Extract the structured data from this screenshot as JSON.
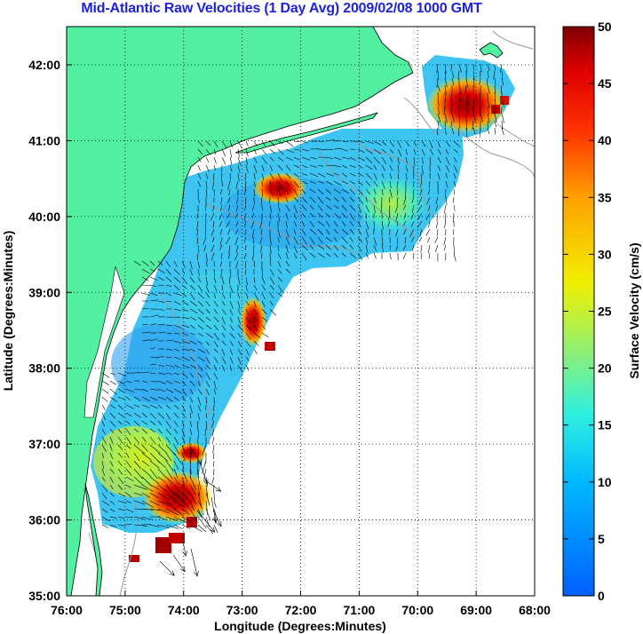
{
  "title": "Mid-Atlantic Raw Velocities (1 Day Avg) 2009/02/08 1000 GMT",
  "x_axis": {
    "label": "Longitude (Degrees:Minutes)",
    "ticks": [
      "76:00",
      "75:00",
      "74:00",
      "73:00",
      "72:00",
      "71:00",
      "70:00",
      "69:00",
      "68:00"
    ]
  },
  "y_axis": {
    "label": "Latitude (Degrees:Minutes)",
    "ticks": [
      "42:00",
      "41:00",
      "40:00",
      "39:00",
      "38:00",
      "37:00",
      "36:00",
      "35:00"
    ]
  },
  "colorbar": {
    "label": "Surface Velocity (cm/s)",
    "ticks": [
      "50",
      "45",
      "40",
      "35",
      "30",
      "25",
      "20",
      "15",
      "10",
      "5",
      "0"
    ],
    "range": [
      0,
      50
    ]
  },
  "colors": {
    "land": "#52f0a0",
    "title": "#1e24d6",
    "frame": "#000000",
    "bathymetry": "#9a9a9a"
  }
}
